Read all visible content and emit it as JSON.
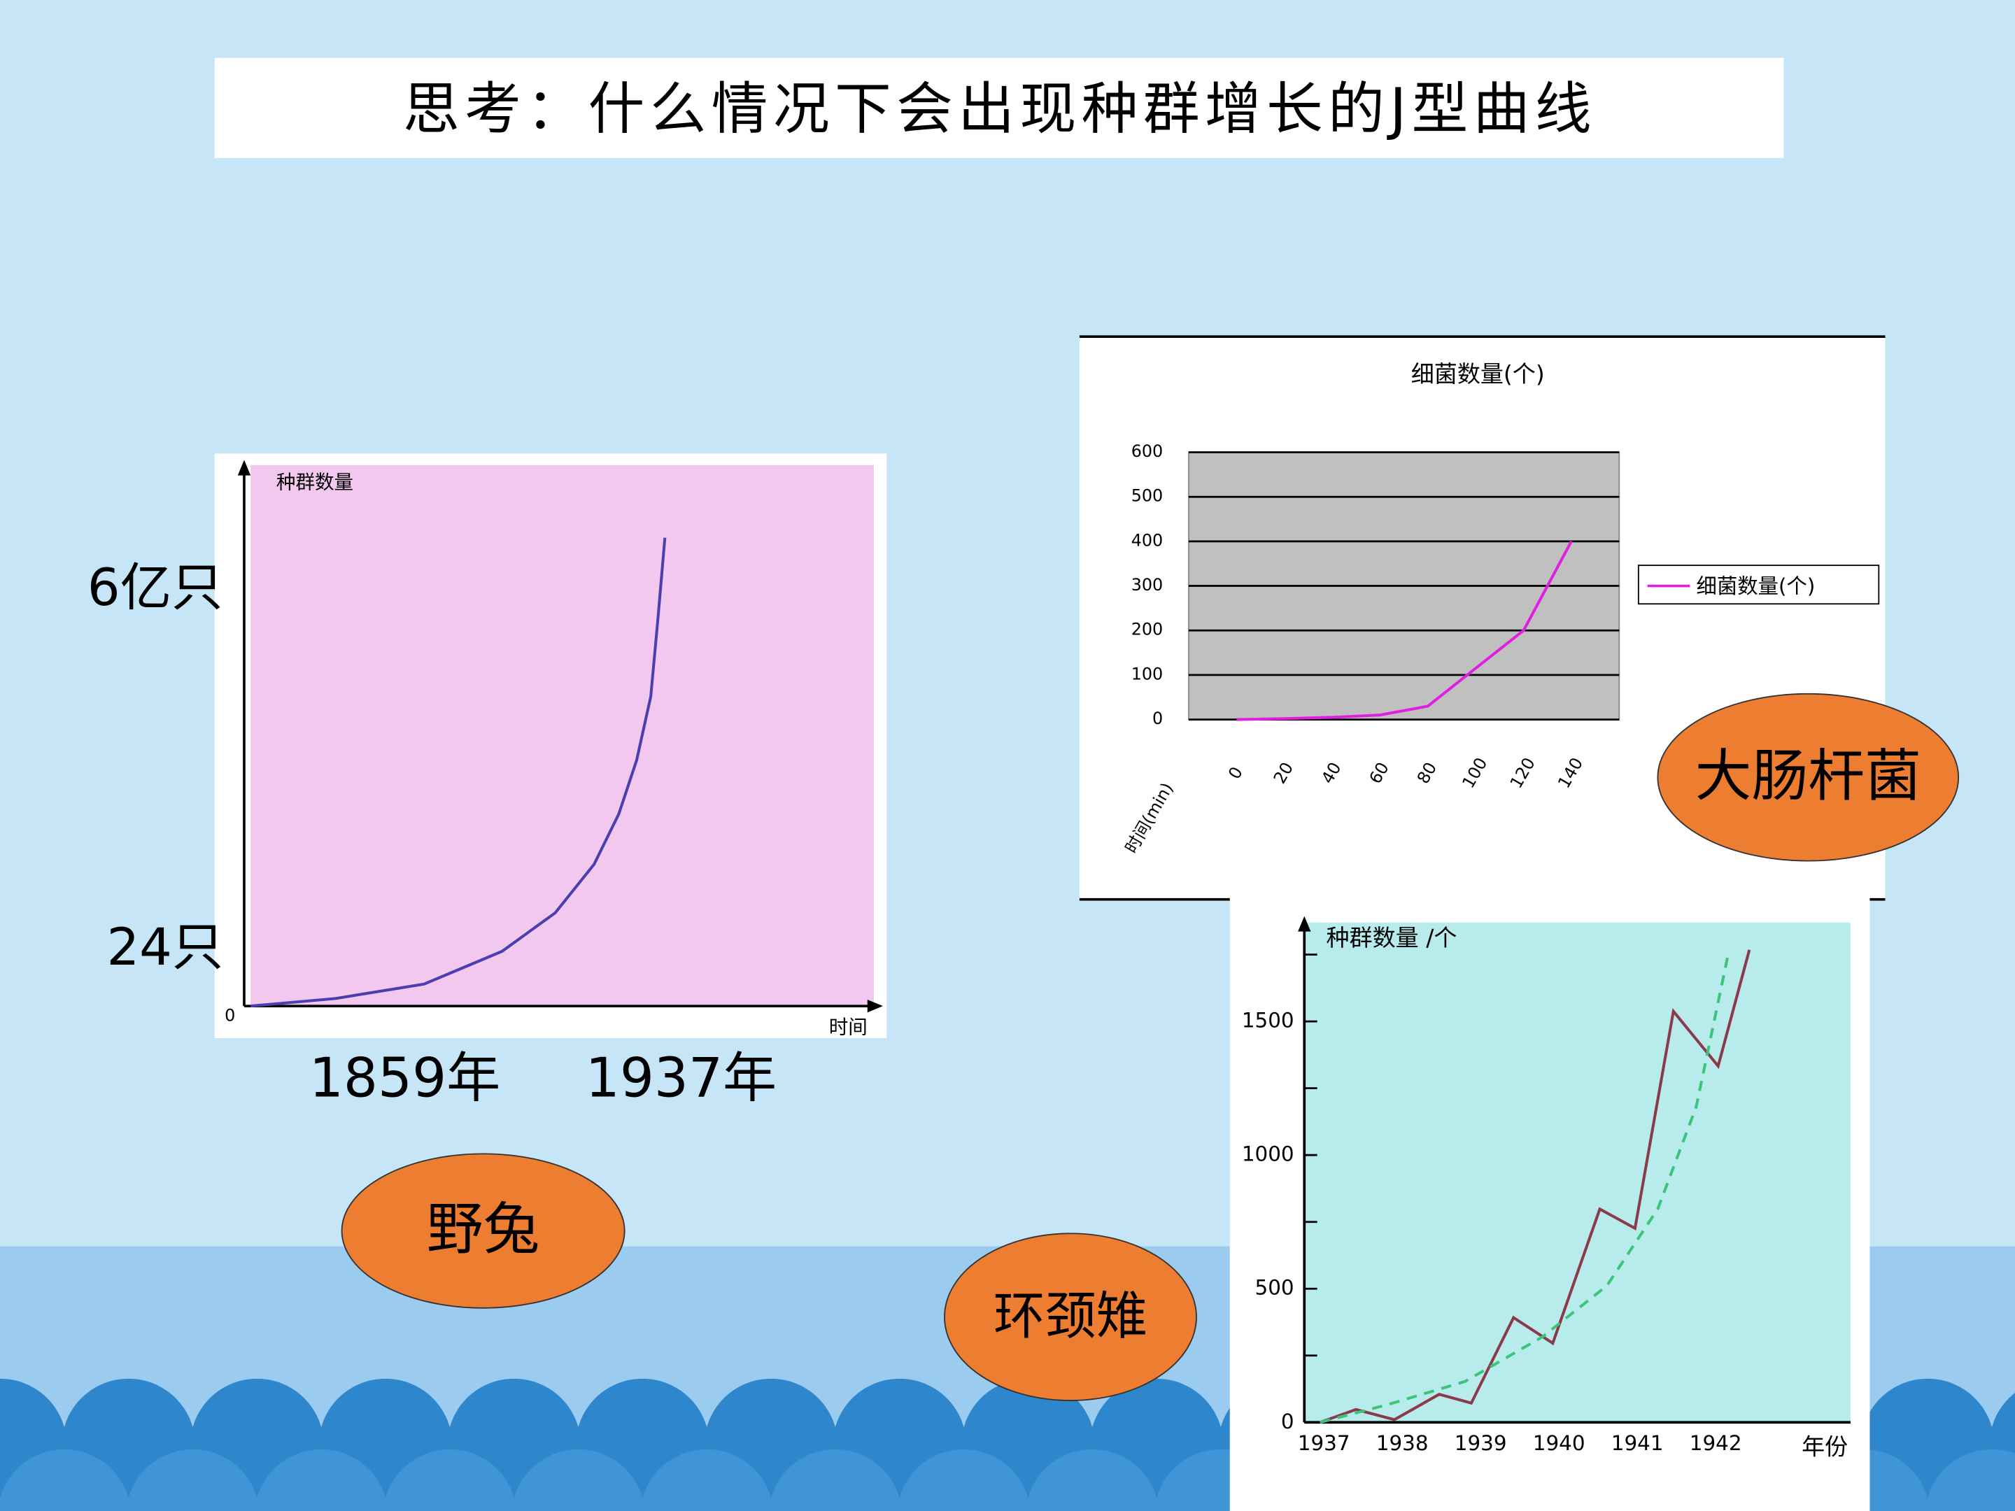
{
  "title": "思考：什么情况下会出现种群增长的J型曲线",
  "ellipses": [
    "野兔",
    "大肠杆菌",
    "环颈雉"
  ],
  "annotations": [
    "6亿只",
    "24只",
    "1859年",
    "1937年"
  ],
  "chart_data": [
    {
      "type": "line",
      "y_label": "种群数量",
      "x_label": "时间",
      "xlim": [
        1815,
        1991
      ],
      "ylim": [
        0,
        7.9
      ],
      "yticks": [
        0
      ],
      "background": "#f2c8ee",
      "series": [
        {
          "color": "#4b3fb0",
          "x": [
            1815,
            1839,
            1864,
            1886,
            1901,
            1912,
            1919,
            1924,
            1928,
            1930,
            1932
          ],
          "values": [
            0,
            0.11,
            0.32,
            0.8,
            1.36,
            2.07,
            2.81,
            3.59,
            4.52,
            5.64,
            6.84
          ]
        }
      ]
    },
    {
      "type": "line",
      "title": "细菌数量(个)",
      "x_label": "时间(min)",
      "categories": [
        "0",
        "20",
        "40",
        "60",
        "80",
        "100",
        "120",
        "140"
      ],
      "ylim": [
        0,
        600
      ],
      "yticks": [
        0,
        100,
        200,
        300,
        400,
        500,
        600
      ],
      "grid": true,
      "legend": "right",
      "background": "#c0c0c0",
      "series": [
        {
          "name": "细菌数量(个)",
          "color": "#e020e0",
          "values": [
            0,
            2,
            5,
            10,
            30,
            115,
            200,
            400
          ]
        }
      ]
    },
    {
      "type": "line",
      "y_label": "种群数量 /个",
      "x_label": "年份",
      "xlim": [
        1936.8,
        1943.77
      ],
      "xticks": [
        1937,
        1938,
        1939,
        1940,
        1941,
        1942
      ],
      "ylim": [
        0,
        1870
      ],
      "yticks": [
        0,
        500,
        1000,
        1500
      ],
      "minor_yticks": [
        250,
        750,
        1250,
        1750
      ],
      "background": "#b8ecec",
      "series": [
        {
          "color": "#8b3a4a",
          "dash": false,
          "x": [
            1937,
            1937.46,
            1937.95,
            1938.52,
            1938.93,
            1939.47,
            1939.97,
            1940.57,
            1941.02,
            1941.51,
            1942.08,
            1942.48
          ],
          "values": [
            0,
            48,
            10,
            105,
            72,
            392,
            296,
            798,
            726,
            1538,
            1333,
            1768
          ]
        },
        {
          "color": "#3cc47a",
          "dash": true,
          "x": [
            1937,
            1937.87,
            1938.85,
            1939.84,
            1940.66,
            1941.31,
            1941.8,
            1942.21
          ],
          "values": [
            0,
            67,
            153,
            320,
            511,
            798,
            1180,
            1753
          ]
        }
      ]
    }
  ]
}
